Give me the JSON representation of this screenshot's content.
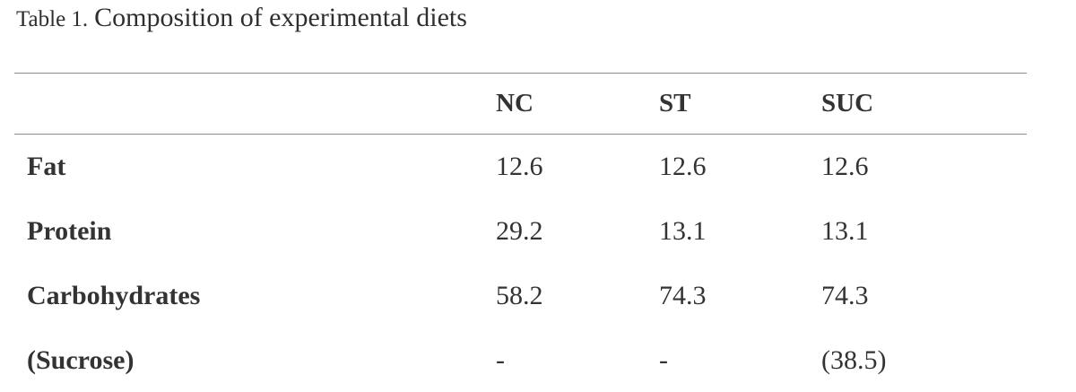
{
  "caption": {
    "label": "Table 1.",
    "title": "Composition of experimental diets"
  },
  "table": {
    "header": {
      "col0": "",
      "col1": "NC",
      "col2": "ST",
      "col3": "SUC"
    },
    "rows": [
      {
        "label": "Fat",
        "nc": "12.6",
        "st": "12.6",
        "suc": "12.6"
      },
      {
        "label": "Protein",
        "nc": "29.2",
        "st": "13.1",
        "suc": "13.1"
      },
      {
        "label": "Carbohydrates",
        "nc": "58.2",
        "st": "74.3",
        "suc": "74.3"
      },
      {
        "label": "(Sucrose)",
        "nc": "-",
        "st": "-",
        "suc": "(38.5)"
      }
    ]
  },
  "chart_data": {
    "type": "table",
    "title": "Table 1. Composition of experimental diets",
    "columns": [
      "",
      "NC",
      "ST",
      "SUC"
    ],
    "rows": [
      [
        "Fat",
        "12.6",
        "12.6",
        "12.6"
      ],
      [
        "Protein",
        "29.2",
        "13.1",
        "13.1"
      ],
      [
        "Carbohydrates",
        "58.2",
        "74.3",
        "74.3"
      ],
      [
        "(Sucrose)",
        "-",
        "-",
        "(38.5)"
      ]
    ]
  },
  "colors": {
    "text": "#333333",
    "rule": "#8c8c8c",
    "background": "#ffffff"
  }
}
